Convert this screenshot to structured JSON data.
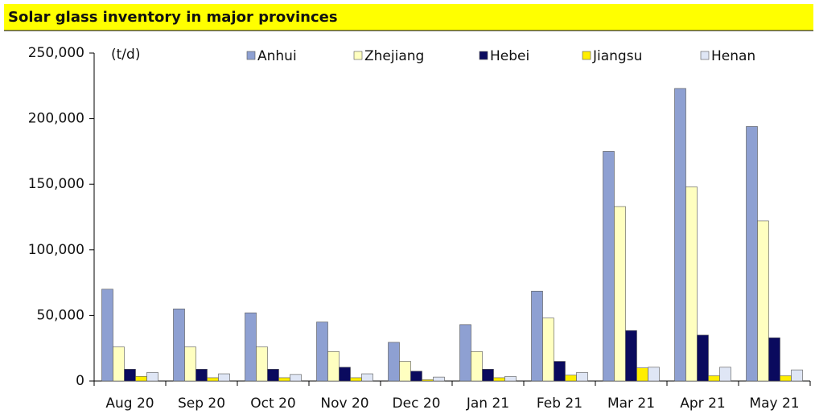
{
  "chart_data": {
    "type": "bar",
    "title": "Solar glass inventory in major provinces",
    "unit_label": "(t/d)",
    "categories": [
      "Aug 20",
      "Sep 20",
      "Oct 20",
      "Nov 20",
      "Dec 20",
      "Jan 21",
      "Feb 21",
      "Mar 21",
      "Apr 21",
      "May 21"
    ],
    "series": [
      {
        "name": "Anhui",
        "color": "#8ea0d2",
        "values": [
          70000,
          55000,
          52000,
          45000,
          29500,
          43000,
          68500,
          175000,
          223000,
          194000
        ]
      },
      {
        "name": "Zhejiang",
        "color": "#ffffc0",
        "values": [
          26000,
          26000,
          26000,
          22500,
          15000,
          22500,
          48000,
          133000,
          148000,
          122000
        ]
      },
      {
        "name": "Hebei",
        "color": "#0a0a5e",
        "values": [
          9000,
          9000,
          9000,
          10500,
          7500,
          9000,
          15000,
          38500,
          35000,
          33000
        ]
      },
      {
        "name": "Jiangsu",
        "color": "#ffee00",
        "values": [
          3500,
          2500,
          2500,
          2500,
          1000,
          2500,
          4500,
          10000,
          4000,
          4000
        ]
      },
      {
        "name": "Henan",
        "color": "#dfe6f5",
        "values": [
          6500,
          5500,
          5000,
          5500,
          3000,
          3500,
          6500,
          10500,
          10500,
          8500
        ]
      }
    ],
    "ylim": [
      0,
      250000
    ],
    "yticks": [
      0,
      {
        "value": 50000,
        "label": "50,000"
      },
      {
        "value": 100000,
        "label": "100,000"
      },
      {
        "value": 150000,
        "label": "150,000"
      },
      {
        "value": 200000,
        "label": "200,000"
      },
      {
        "value": 250000,
        "label": "250,000"
      }
    ],
    "legend": "top",
    "grid": false
  }
}
